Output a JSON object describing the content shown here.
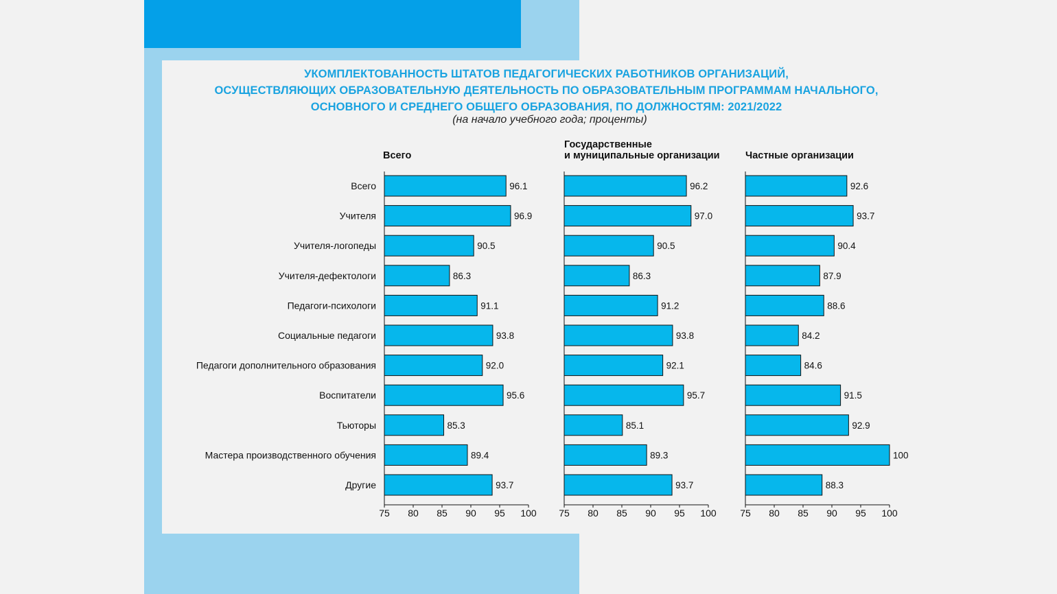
{
  "title_lines": [
    "УКОМПЛЕКТОВАННОСТЬ ШТАТОВ ПЕДАГОГИЧЕСКИХ РАБОТНИКОВ ОРГАНИЗАЦИЙ,",
    "ОСУЩЕСТВЛЯЮЩИХ ОБРАЗОВАТЕЛЬНУЮ ДЕЯТЕЛЬНОСТЬ ПО ОБРАЗОВАТЕЛЬНЫМ ПРОГРАММАМ НАЧАЛЬНОГО,",
    "ОСНОВНОГО И СРЕДНЕГО ОБЩЕГО ОБРАЗОВАНИЯ, ПО ДОЛЖНОСТЯМ: 2021/2022"
  ],
  "subtitle": "(на начало учебного года; проценты)",
  "colors": {
    "bar": "#06b7ec",
    "title": "#1aa3e0"
  },
  "chart_data": [
    {
      "type": "bar",
      "orientation": "horizontal",
      "title_lines": [
        "Всего"
      ],
      "categories": [
        "Всего",
        "Учителя",
        "Учителя-логопеды",
        "Учителя-дефектологи",
        "Педагоги-психологи",
        "Социальные педагоги",
        "Педагоги дополнительного образования",
        "Воспитатели",
        "Тьюторы",
        "Мастера производственного обучения",
        "Другие"
      ],
      "values": [
        96.1,
        96.9,
        90.5,
        86.3,
        91.1,
        93.8,
        92.0,
        95.6,
        85.3,
        89.4,
        93.7
      ],
      "value_labels": [
        "96.1",
        "96.9",
        "90.5",
        "86.3",
        "91.1",
        "93.8",
        "92.0",
        "95.6",
        "85.3",
        "89.4",
        "93.7"
      ],
      "xlim": [
        75,
        100
      ],
      "xticks": [
        "75",
        "80",
        "85",
        "90",
        "95",
        "100"
      ]
    },
    {
      "type": "bar",
      "orientation": "horizontal",
      "title_lines": [
        "Государственные",
        "и муниципальные организации"
      ],
      "categories": [
        "Всего",
        "Учителя",
        "Учителя-логопеды",
        "Учителя-дефектологи",
        "Педагоги-психологи",
        "Социальные педагоги",
        "Педагоги дополнительного образования",
        "Воспитатели",
        "Тьюторы",
        "Мастера производственного обучения",
        "Другие"
      ],
      "values": [
        96.2,
        97.0,
        90.5,
        86.3,
        91.2,
        93.8,
        92.1,
        95.7,
        85.1,
        89.3,
        93.7
      ],
      "value_labels": [
        "96.2",
        "97.0",
        "90.5",
        "86.3",
        "91.2",
        "93.8",
        "92.1",
        "95.7",
        "85.1",
        "89.3",
        "93.7"
      ],
      "xlim": [
        75,
        100
      ],
      "xticks": [
        "75",
        "80",
        "85",
        "90",
        "95",
        "100"
      ]
    },
    {
      "type": "bar",
      "orientation": "horizontal",
      "title_lines": [
        "Частные организации"
      ],
      "categories": [
        "Всего",
        "Учителя",
        "Учителя-логопеды",
        "Учителя-дефектологи",
        "Педагоги-психологи",
        "Социальные педагоги",
        "Педагоги дополнительного образования",
        "Воспитатели",
        "Тьюторы",
        "Мастера производственного обучения",
        "Другие"
      ],
      "values": [
        92.6,
        93.7,
        90.4,
        87.9,
        88.6,
        84.2,
        84.6,
        91.5,
        92.9,
        100,
        88.3
      ],
      "value_labels": [
        "92.6",
        "93.7",
        "90.4",
        "87.9",
        "88.6",
        "84.2",
        "84.6",
        "91.5",
        "92.9",
        "100",
        "88.3"
      ],
      "xlim": [
        75,
        100
      ],
      "xticks": [
        "75",
        "80",
        "85",
        "90",
        "95",
        "100"
      ]
    }
  ]
}
